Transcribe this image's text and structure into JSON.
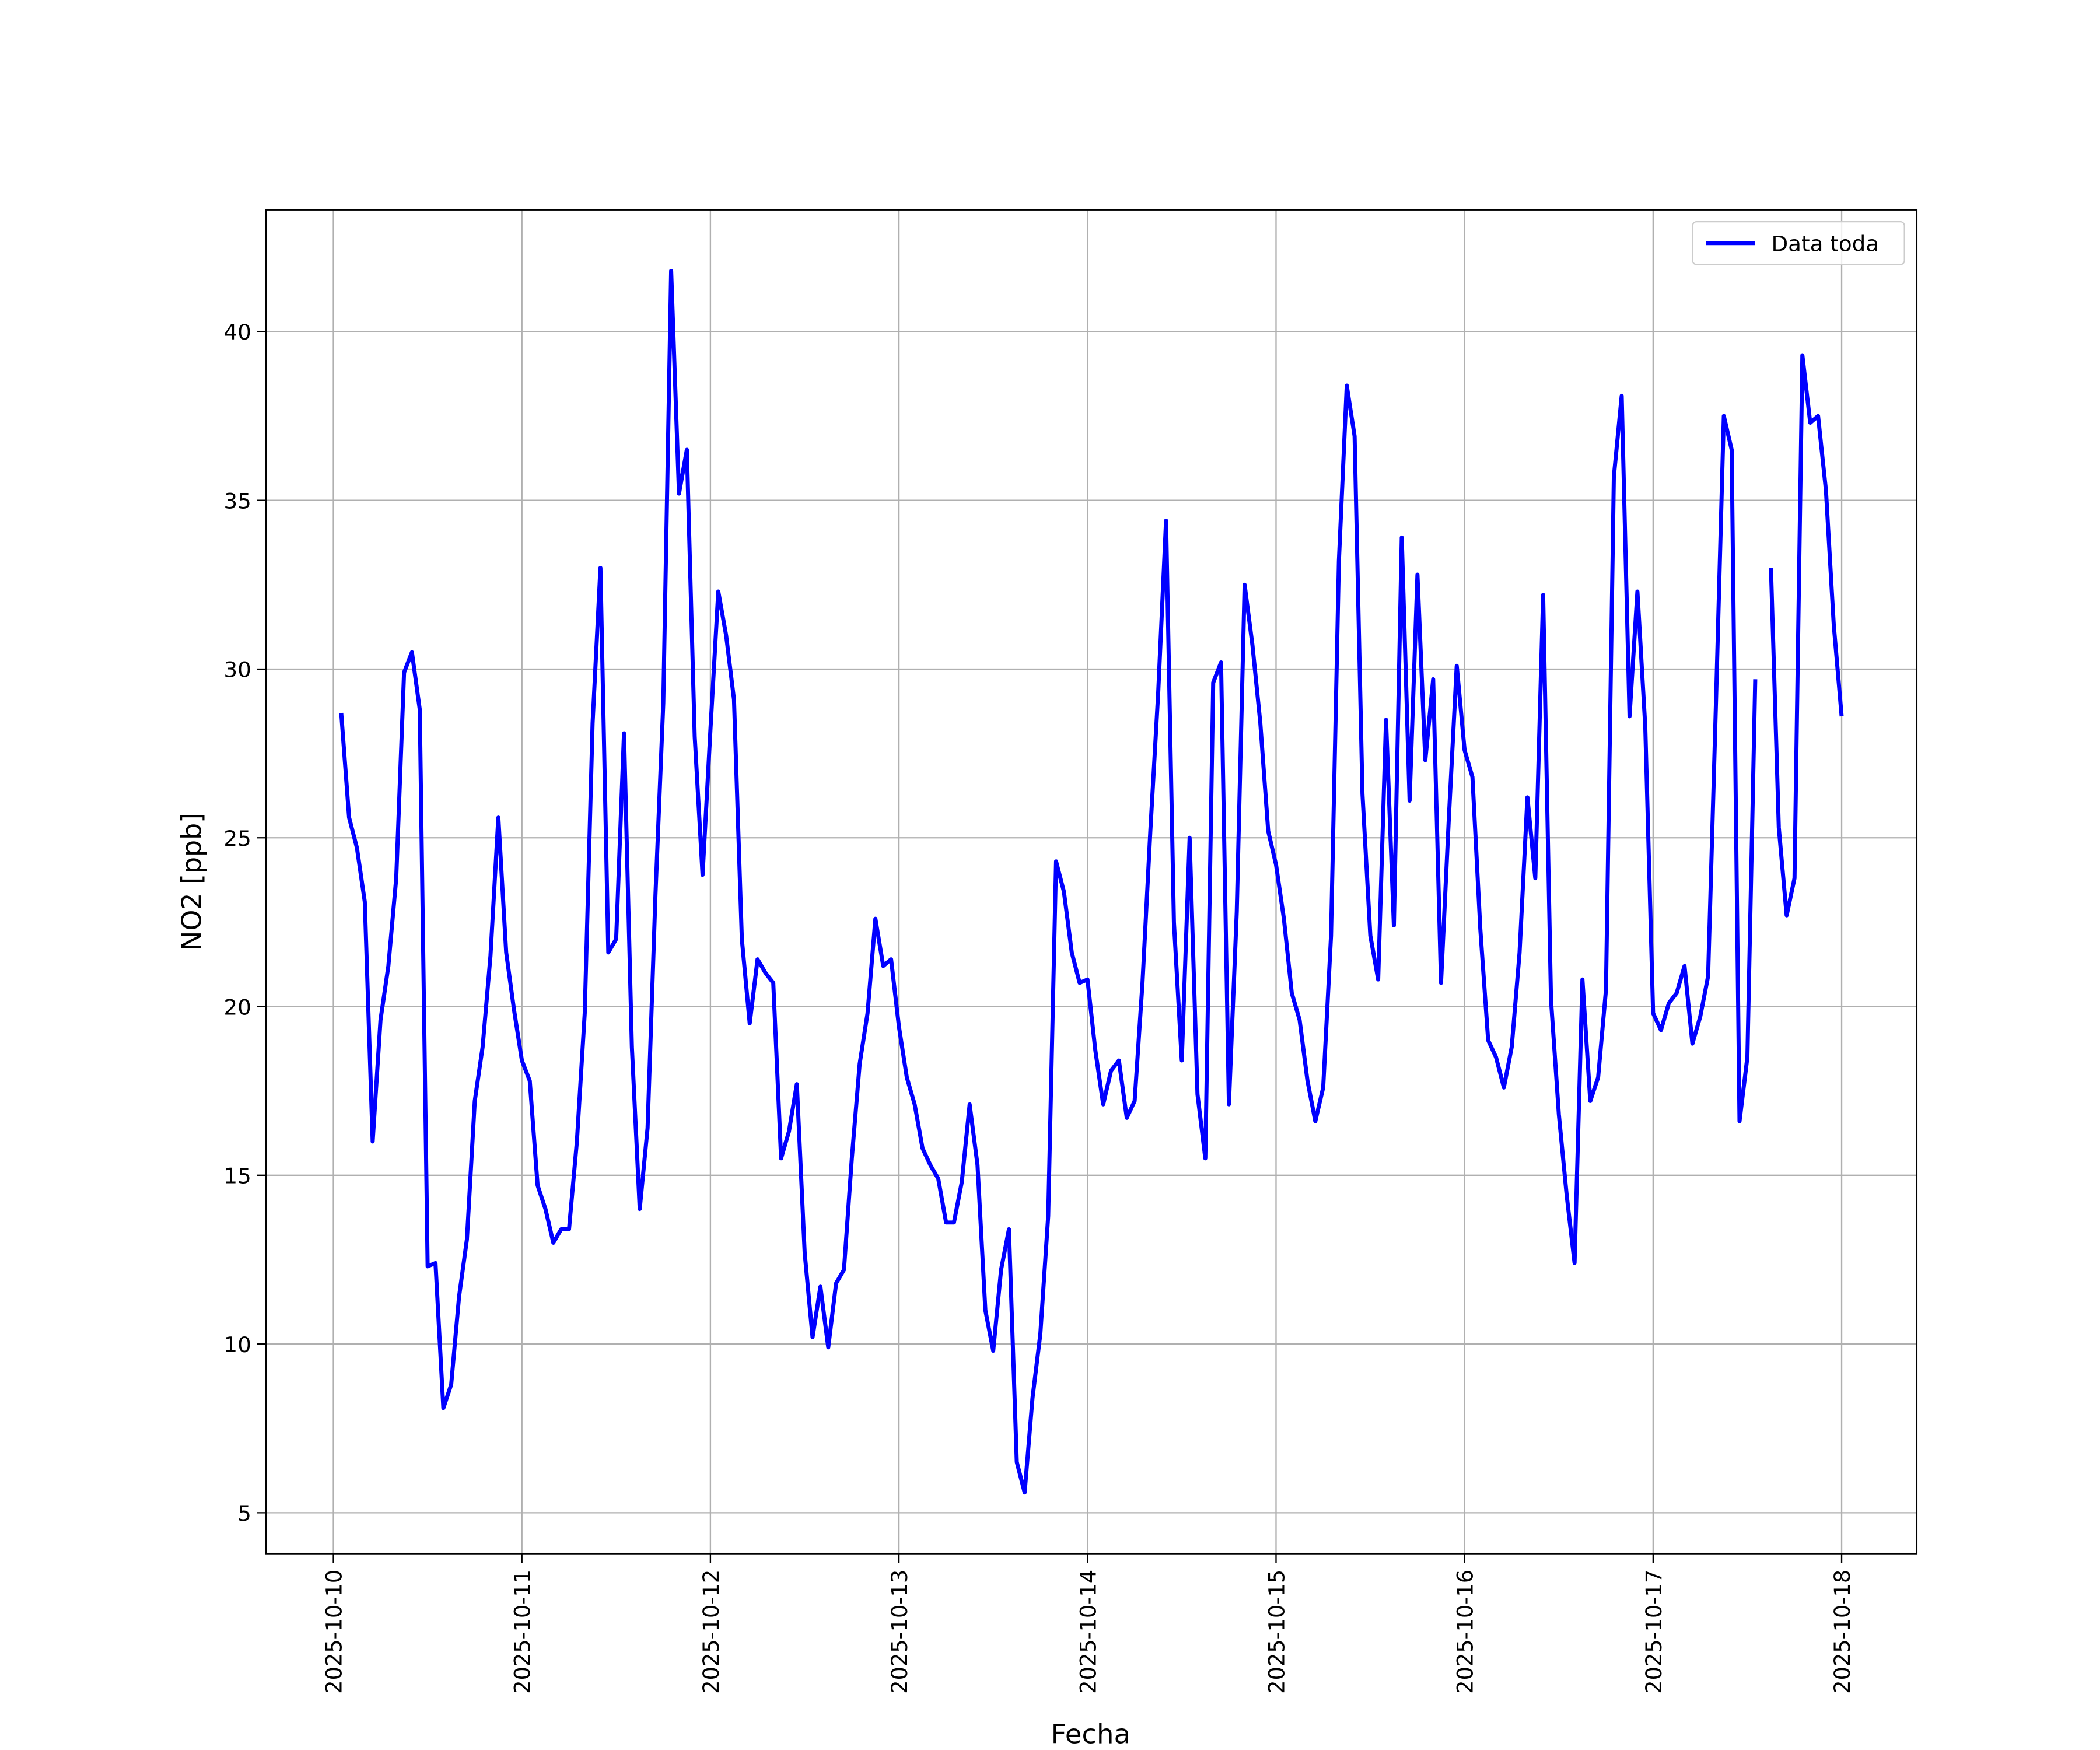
{
  "chart_data": {
    "type": "line",
    "x_label": "Fecha",
    "y_label": "NO2 [ppb]",
    "x": [
      "2025-10-10 01:00",
      "2025-10-10 02:00",
      "2025-10-10 03:00",
      "2025-10-10 04:00",
      "2025-10-10 05:00",
      "2025-10-10 06:00",
      "2025-10-10 07:00",
      "2025-10-10 08:00",
      "2025-10-10 09:00",
      "2025-10-10 10:00",
      "2025-10-10 11:00",
      "2025-10-10 12:00",
      "2025-10-10 13:00",
      "2025-10-10 14:00",
      "2025-10-10 15:00",
      "2025-10-10 16:00",
      "2025-10-10 17:00",
      "2025-10-10 18:00",
      "2025-10-10 19:00",
      "2025-10-10 20:00",
      "2025-10-10 21:00",
      "2025-10-10 22:00",
      "2025-10-10 23:00",
      "2025-10-11 00:00",
      "2025-10-11 01:00",
      "2025-10-11 02:00",
      "2025-10-11 03:00",
      "2025-10-11 04:00",
      "2025-10-11 05:00",
      "2025-10-11 06:00",
      "2025-10-11 07:00",
      "2025-10-11 08:00",
      "2025-10-11 09:00",
      "2025-10-11 10:00",
      "2025-10-11 11:00",
      "2025-10-11 12:00",
      "2025-10-11 13:00",
      "2025-10-11 14:00",
      "2025-10-11 15:00",
      "2025-10-11 16:00",
      "2025-10-11 17:00",
      "2025-10-11 18:00",
      "2025-10-11 19:00",
      "2025-10-11 20:00",
      "2025-10-11 21:00",
      "2025-10-11 22:00",
      "2025-10-11 23:00",
      "2025-10-12 00:00",
      "2025-10-12 01:00",
      "2025-10-12 02:00",
      "2025-10-12 03:00",
      "2025-10-12 04:00",
      "2025-10-12 05:00",
      "2025-10-12 06:00",
      "2025-10-12 07:00",
      "2025-10-12 08:00",
      "2025-10-12 09:00",
      "2025-10-12 10:00",
      "2025-10-12 11:00",
      "2025-10-12 12:00",
      "2025-10-12 13:00",
      "2025-10-12 14:00",
      "2025-10-12 15:00",
      "2025-10-12 16:00",
      "2025-10-12 17:00",
      "2025-10-12 18:00",
      "2025-10-12 19:00",
      "2025-10-12 20:00",
      "2025-10-12 21:00",
      "2025-10-12 22:00",
      "2025-10-12 23:00",
      "2025-10-13 00:00",
      "2025-10-13 01:00",
      "2025-10-13 02:00",
      "2025-10-13 03:00",
      "2025-10-13 04:00",
      "2025-10-13 05:00",
      "2025-10-13 06:00",
      "2025-10-13 07:00",
      "2025-10-13 08:00",
      "2025-10-13 09:00",
      "2025-10-13 10:00",
      "2025-10-13 11:00",
      "2025-10-13 12:00",
      "2025-10-13 13:00",
      "2025-10-13 14:00",
      "2025-10-13 15:00",
      "2025-10-13 16:00",
      "2025-10-13 17:00",
      "2025-10-13 18:00",
      "2025-10-13 19:00",
      "2025-10-13 20:00",
      "2025-10-13 21:00",
      "2025-10-13 22:00",
      "2025-10-13 23:00",
      "2025-10-14 00:00",
      "2025-10-14 01:00",
      "2025-10-14 02:00",
      "2025-10-14 03:00",
      "2025-10-14 04:00",
      "2025-10-14 05:00",
      "2025-10-14 06:00",
      "2025-10-14 07:00",
      "2025-10-14 08:00",
      "2025-10-14 09:00",
      "2025-10-14 10:00",
      "2025-10-14 11:00",
      "2025-10-14 12:00",
      "2025-10-14 13:00",
      "2025-10-14 14:00",
      "2025-10-14 15:00",
      "2025-10-14 16:00",
      "2025-10-14 17:00",
      "2025-10-14 18:00",
      "2025-10-14 19:00",
      "2025-10-14 20:00",
      "2025-10-14 21:00",
      "2025-10-14 22:00",
      "2025-10-14 23:00",
      "2025-10-15 00:00",
      "2025-10-15 01:00",
      "2025-10-15 02:00",
      "2025-10-15 03:00",
      "2025-10-15 04:00",
      "2025-10-15 05:00",
      "2025-10-15 06:00",
      "2025-10-15 07:00",
      "2025-10-15 08:00",
      "2025-10-15 09:00",
      "2025-10-15 10:00",
      "2025-10-15 11:00",
      "2025-10-15 12:00",
      "2025-10-15 13:00",
      "2025-10-15 14:00",
      "2025-10-15 15:00",
      "2025-10-15 16:00",
      "2025-10-15 17:00",
      "2025-10-15 18:00",
      "2025-10-15 19:00",
      "2025-10-15 20:00",
      "2025-10-15 21:00",
      "2025-10-15 22:00",
      "2025-10-15 23:00",
      "2025-10-16 00:00",
      "2025-10-16 01:00",
      "2025-10-16 02:00",
      "2025-10-16 03:00",
      "2025-10-16 04:00",
      "2025-10-16 05:00",
      "2025-10-16 06:00",
      "2025-10-16 07:00",
      "2025-10-16 08:00",
      "2025-10-16 09:00",
      "2025-10-16 10:00",
      "2025-10-16 11:00",
      "2025-10-16 12:00",
      "2025-10-16 13:00",
      "2025-10-16 14:00",
      "2025-10-16 15:00",
      "2025-10-16 16:00",
      "2025-10-16 17:00",
      "2025-10-16 18:00",
      "2025-10-16 19:00",
      "2025-10-16 20:00",
      "2025-10-16 21:00",
      "2025-10-16 22:00",
      "2025-10-16 23:00",
      "2025-10-17 00:00",
      "2025-10-17 01:00",
      "2025-10-17 02:00",
      "2025-10-17 03:00",
      "2025-10-17 04:00",
      "2025-10-17 05:00",
      "2025-10-17 06:00",
      "2025-10-17 07:00",
      "2025-10-17 08:00",
      "2025-10-17 09:00",
      "2025-10-17 10:00",
      "2025-10-17 11:00",
      "2025-10-17 12:00",
      "2025-10-17 13:00",
      "2025-10-17 14:00",
      "2025-10-17 15:00",
      "2025-10-17 16:00",
      "2025-10-17 17:00",
      "2025-10-17 18:00",
      "2025-10-17 19:00",
      "2025-10-17 20:00",
      "2025-10-17 21:00",
      "2025-10-17 22:00",
      "2025-10-17 23:00",
      "2025-10-18 00:00"
    ],
    "series": [
      {
        "name": "Data toda",
        "color": "#0000ff",
        "values": [
          28.7,
          25.6,
          24.7,
          23.1,
          16.0,
          19.6,
          21.2,
          23.8,
          29.9,
          30.5,
          28.8,
          12.3,
          12.4,
          8.1,
          8.8,
          11.4,
          13.1,
          17.2,
          18.8,
          21.5,
          25.6,
          21.6,
          19.9,
          18.4,
          17.8,
          14.7,
          14.0,
          13.0,
          13.4,
          13.4,
          16.0,
          19.8,
          28.4,
          33.0,
          21.6,
          22.0,
          28.1,
          18.8,
          14.0,
          16.4,
          23.3,
          29.0,
          41.8,
          35.2,
          36.5,
          28.0,
          23.9,
          28.2,
          32.3,
          31.0,
          29.1,
          22.0,
          19.5,
          21.4,
          21.0,
          20.7,
          15.5,
          16.3,
          17.7,
          12.7,
          10.2,
          11.7,
          9.9,
          11.8,
          12.2,
          15.5,
          18.3,
          19.8,
          22.6,
          21.2,
          21.4,
          19.4,
          17.9,
          17.1,
          15.8,
          15.3,
          14.9,
          13.6,
          13.6,
          14.8,
          17.1,
          15.3,
          11.0,
          9.8,
          12.2,
          13.4,
          6.5,
          5.6,
          8.4,
          10.3,
          13.8,
          24.3,
          23.4,
          21.6,
          20.7,
          20.8,
          18.7,
          17.1,
          18.1,
          18.4,
          16.7,
          17.2,
          20.7,
          25.2,
          29.3,
          34.4,
          22.5,
          18.4,
          25.0,
          17.4,
          15.5,
          29.6,
          30.2,
          17.1,
          22.8,
          32.5,
          30.7,
          28.4,
          25.2,
          24.2,
          22.6,
          20.4,
          19.6,
          17.8,
          16.6,
          17.6,
          22.1,
          33.2,
          38.4,
          36.9,
          26.3,
          22.1,
          20.8,
          28.5,
          22.4,
          33.9,
          26.1,
          32.8,
          27.3,
          29.7,
          20.7,
          25.6,
          30.1,
          27.6,
          26.8,
          22.3,
          19.0,
          18.5,
          17.6,
          18.8,
          21.6,
          26.2,
          23.8,
          32.2,
          20.2,
          16.8,
          14.4,
          12.4,
          20.8,
          17.2,
          17.9,
          20.5,
          35.7,
          38.1,
          28.6,
          32.3,
          28.3,
          19.8,
          19.3,
          20.1,
          20.4,
          21.2,
          18.9,
          19.7,
          20.9,
          29.0,
          37.5,
          36.5,
          16.6,
          18.5,
          29.7,
          null,
          33.0,
          25.3,
          22.7,
          23.8,
          39.3,
          37.3,
          37.5,
          35.3,
          31.3,
          28.6
        ]
      }
    ],
    "xlim": [
      "2025-10-09 15:27",
      "2025-10-18 09:33"
    ],
    "xticks": [
      "2025-10-10",
      "2025-10-11",
      "2025-10-12",
      "2025-10-13",
      "2025-10-14",
      "2025-10-15",
      "2025-10-16",
      "2025-10-17",
      "2025-10-18"
    ],
    "ylim": [
      3.79,
      43.61
    ],
    "yticks": [
      5,
      10,
      15,
      20,
      25,
      30,
      35,
      40
    ],
    "grid": true,
    "legend": "upper right"
  }
}
